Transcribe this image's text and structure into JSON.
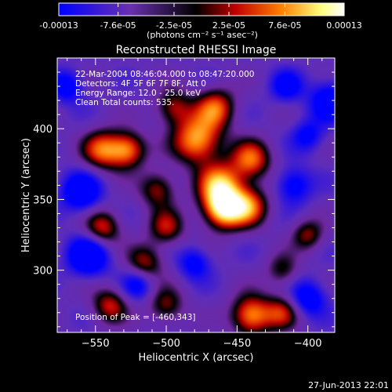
{
  "chart_data": {
    "type": "heatmap",
    "title": "Reconstructed RHESSI Image",
    "xlabel": "Heliocentric X (arcsec)",
    "ylabel": "Heliocentric Y (arcsec)",
    "xlim": [
      -577,
      -381
    ],
    "ylim": [
      256,
      450
    ],
    "x_ticks": [
      -550,
      -500,
      -450,
      -400
    ],
    "y_ticks": [
      300,
      350,
      400
    ],
    "colorbar": {
      "min": -0.00013,
      "max": 0.00013,
      "ticks": [
        "-0.00013",
        "-7.6e-05",
        "-2.5e-05",
        "2.5e-05",
        "7.6e-05",
        "0.00013"
      ],
      "tick_values": [
        -0.00013,
        -7.6e-05,
        -2.5e-05,
        2.5e-05,
        7.6e-05,
        0.00013
      ],
      "units": "(photons cm⁻² s⁻¹ asec⁻²)"
    },
    "annotations": [
      "22-Mar-2004 08:46:04.000 to 08:47:20.000",
      "Detectors: 4F 5F 6F 7F 8F, Att 0",
      "Energy Range: 12.0 - 25.0 keV",
      "Clean      Total counts: 535.",
      "Position of Peak = [-460,343]"
    ],
    "peak_position": [
      -460,
      343
    ],
    "colormap": [
      "#0000ff",
      "#7030a0",
      "#000000",
      "#c00000",
      "#ff8000",
      "#ffff80",
      "#ffffff"
    ],
    "sources": [
      {
        "x": -478,
        "y": 392,
        "amp": 1.0,
        "sigma": 12
      },
      {
        "x": -462,
        "y": 360,
        "amp": 0.95,
        "sigma": 11
      },
      {
        "x": -460,
        "y": 343,
        "amp": 1.1,
        "sigma": 10
      },
      {
        "x": -442,
        "y": 345,
        "amp": 0.8,
        "sigma": 10
      },
      {
        "x": -440,
        "y": 378,
        "amp": 0.8,
        "sigma": 10
      },
      {
        "x": -465,
        "y": 415,
        "amp": 0.75,
        "sigma": 10
      },
      {
        "x": -545,
        "y": 385,
        "amp": 0.8,
        "sigma": 10
      },
      {
        "x": -527,
        "y": 385,
        "amp": 0.85,
        "sigma": 9
      },
      {
        "x": -545,
        "y": 330,
        "amp": 0.7,
        "sigma": 9
      },
      {
        "x": -506,
        "y": 357,
        "amp": 0.6,
        "sigma": 9
      },
      {
        "x": -500,
        "y": 330,
        "amp": 0.6,
        "sigma": 9
      },
      {
        "x": -515,
        "y": 305,
        "amp": 0.6,
        "sigma": 9
      },
      {
        "x": -540,
        "y": 275,
        "amp": 0.65,
        "sigma": 9
      },
      {
        "x": -500,
        "y": 275,
        "amp": 0.55,
        "sigma": 9
      },
      {
        "x": -440,
        "y": 268,
        "amp": 0.95,
        "sigma": 10
      },
      {
        "x": -418,
        "y": 270,
        "amp": 0.6,
        "sigma": 9
      },
      {
        "x": -400,
        "y": 325,
        "amp": 0.55,
        "sigma": 8
      },
      {
        "x": -418,
        "y": 300,
        "amp": 0.45,
        "sigma": 8
      },
      {
        "x": -495,
        "y": 415,
        "amp": 0.6,
        "sigma": 9
      },
      {
        "x": -560,
        "y": 355,
        "amp": -0.7,
        "sigma": 10
      },
      {
        "x": -555,
        "y": 310,
        "amp": -0.8,
        "sigma": 10
      },
      {
        "x": -400,
        "y": 280,
        "amp": -0.6,
        "sigma": 9
      },
      {
        "x": -385,
        "y": 420,
        "amp": -0.6,
        "sigma": 10
      },
      {
        "x": -410,
        "y": 360,
        "amp": -0.55,
        "sigma": 9
      },
      {
        "x": -520,
        "y": 290,
        "amp": -0.5,
        "sigma": 8
      },
      {
        "x": -415,
        "y": 430,
        "amp": -0.5,
        "sigma": 8
      },
      {
        "x": -570,
        "y": 430,
        "amp": -0.55,
        "sigma": 8
      },
      {
        "x": -480,
        "y": 305,
        "amp": -0.5,
        "sigma": 8
      },
      {
        "x": -400,
        "y": 395,
        "amp": -0.45,
        "sigma": 8
      }
    ]
  },
  "footer": {
    "date": "27-Jun-2013 22:01"
  }
}
